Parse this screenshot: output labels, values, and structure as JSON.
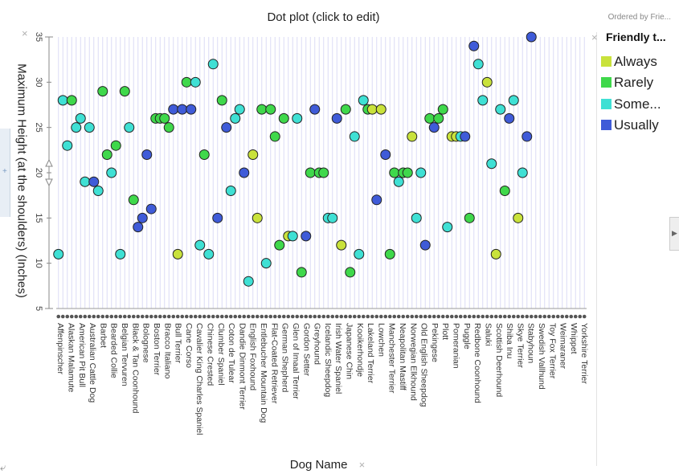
{
  "title": "Dot plot (click to edit)",
  "ordered_by": "Ordered by Frie...",
  "close_glyph": "×",
  "corner_icon": "⤶",
  "chart_data": {
    "type": "scatter",
    "title": "Dot plot (click to edit)",
    "xlabel": "Dog Name",
    "ylabel": "Maximum Height (at the shoulders) (Inches)",
    "ylim": [
      5,
      35
    ],
    "yticks": [
      5,
      10,
      15,
      20,
      25,
      30,
      35
    ],
    "grid": true,
    "legend_position": "right",
    "legend_title": "Friendly t...",
    "legend": [
      {
        "key": "Always",
        "label": "Always",
        "color": "#c9e23b"
      },
      {
        "key": "Rarely",
        "label": "Rarely",
        "color": "#3fd84b"
      },
      {
        "key": "Sometimes",
        "label": "Some...",
        "color": "#3fe0d4"
      },
      {
        "key": "Usually",
        "label": "Usually",
        "color": "#3f5bd8"
      }
    ],
    "categories": [
      "Affenpinscher",
      "Alaskan Malamute",
      "American Pit Bull",
      "Australian Cattle Dog",
      "Barbet",
      "Bearded Collie",
      "Belgian Tervuren",
      "Black & Tan Coonhound",
      "Bolognese",
      "Boston Terrier",
      "Bracco Italiano",
      "Bull Terrier",
      "Cane Corso",
      "Cavalier King Charles Spaniel",
      "Chinese Crested",
      "Clumber Spaniel",
      "Coton de Tulear",
      "Dandie Dinmont Terrier",
      "English Foxhound",
      "Entlebucher Mountain Dog",
      "Flat-Coated Retriever",
      "German Shepherd",
      "Glen of Imaal Terrier",
      "Gordon Setter",
      "Greyhound",
      "Icelandic Sheepdog",
      "Irish Water Spaniel",
      "Japanese Chin",
      "Kooikerhondje",
      "Lakeland Terrier",
      "Lowchen",
      "Manchester Terrier",
      "Neapolitan Mastiff",
      "Norwegian Elkhound",
      "Old English Sheepdog",
      "Pekingese",
      "Plott",
      "Pomeranian",
      "Puggle",
      "Redbone Coonhound",
      "Saluki",
      "Scottish Deerhound",
      "Shiba Inu",
      "Skye Terrier",
      "Stabyhoun",
      "Swedish Vallhund",
      "Toy Fox Terrier",
      "Weimaraner",
      "Whippet",
      "Yorkshire Terrier"
    ],
    "n_slots": 120,
    "points": [
      {
        "x": 1,
        "y": 11,
        "s": "Sometimes"
      },
      {
        "x": 2,
        "y": 28,
        "s": "Sometimes"
      },
      {
        "x": 3,
        "y": 23,
        "s": "Sometimes"
      },
      {
        "x": 4,
        "y": 28,
        "s": "Rarely"
      },
      {
        "x": 5,
        "y": 25,
        "s": "Sometimes"
      },
      {
        "x": 6,
        "y": 26,
        "s": "Sometimes"
      },
      {
        "x": 7,
        "y": 19,
        "s": "Sometimes"
      },
      {
        "x": 8,
        "y": 25,
        "s": "Sometimes"
      },
      {
        "x": 9,
        "y": 19,
        "s": "Usually"
      },
      {
        "x": 10,
        "y": 18,
        "s": "Sometimes"
      },
      {
        "x": 11,
        "y": 29,
        "s": "Rarely"
      },
      {
        "x": 12,
        "y": 22,
        "s": "Rarely"
      },
      {
        "x": 13,
        "y": 20,
        "s": "Sometimes"
      },
      {
        "x": 14,
        "y": 23,
        "s": "Rarely"
      },
      {
        "x": 15,
        "y": 11,
        "s": "Sometimes"
      },
      {
        "x": 16,
        "y": 29,
        "s": "Rarely"
      },
      {
        "x": 17,
        "y": 25,
        "s": "Sometimes"
      },
      {
        "x": 18,
        "y": 17,
        "s": "Rarely"
      },
      {
        "x": 19,
        "y": 14,
        "s": "Usually"
      },
      {
        "x": 20,
        "y": 15,
        "s": "Usually"
      },
      {
        "x": 21,
        "y": 22,
        "s": "Usually"
      },
      {
        "x": 22,
        "y": 16,
        "s": "Usually"
      },
      {
        "x": 23,
        "y": 26,
        "s": "Rarely"
      },
      {
        "x": 24,
        "y": 26,
        "s": "Rarely"
      },
      {
        "x": 25,
        "y": 26,
        "s": "Rarely"
      },
      {
        "x": 26,
        "y": 25,
        "s": "Rarely"
      },
      {
        "x": 27,
        "y": 27,
        "s": "Usually"
      },
      {
        "x": 28,
        "y": 11,
        "s": "Always"
      },
      {
        "x": 29,
        "y": 27,
        "s": "Usually"
      },
      {
        "x": 30,
        "y": 30,
        "s": "Rarely"
      },
      {
        "x": 31,
        "y": 27,
        "s": "Usually"
      },
      {
        "x": 32,
        "y": 30,
        "s": "Sometimes"
      },
      {
        "x": 33,
        "y": 12,
        "s": "Sometimes"
      },
      {
        "x": 34,
        "y": 22,
        "s": "Rarely"
      },
      {
        "x": 35,
        "y": 11,
        "s": "Sometimes"
      },
      {
        "x": 36,
        "y": 32,
        "s": "Sometimes"
      },
      {
        "x": 37,
        "y": 15,
        "s": "Usually"
      },
      {
        "x": 38,
        "y": 28,
        "s": "Rarely"
      },
      {
        "x": 39,
        "y": 25,
        "s": "Usually"
      },
      {
        "x": 40,
        "y": 18,
        "s": "Sometimes"
      },
      {
        "x": 41,
        "y": 26,
        "s": "Sometimes"
      },
      {
        "x": 42,
        "y": 27,
        "s": "Sometimes"
      },
      {
        "x": 43,
        "y": 20,
        "s": "Usually"
      },
      {
        "x": 44,
        "y": 8,
        "s": "Sometimes"
      },
      {
        "x": 45,
        "y": 22,
        "s": "Always"
      },
      {
        "x": 46,
        "y": 15,
        "s": "Always"
      },
      {
        "x": 47,
        "y": 27,
        "s": "Rarely"
      },
      {
        "x": 48,
        "y": 10,
        "s": "Sometimes"
      },
      {
        "x": 49,
        "y": 27,
        "s": "Rarely"
      },
      {
        "x": 50,
        "y": 24,
        "s": "Rarely"
      },
      {
        "x": 51,
        "y": 12,
        "s": "Rarely"
      },
      {
        "x": 52,
        "y": 26,
        "s": "Rarely"
      },
      {
        "x": 53,
        "y": 13,
        "s": "Always"
      },
      {
        "x": 54,
        "y": 13,
        "s": "Sometimes"
      },
      {
        "x": 55,
        "y": 26,
        "s": "Sometimes"
      },
      {
        "x": 56,
        "y": 9,
        "s": "Rarely"
      },
      {
        "x": 57,
        "y": 13,
        "s": "Usually"
      },
      {
        "x": 58,
        "y": 20,
        "s": "Rarely"
      },
      {
        "x": 59,
        "y": 27,
        "s": "Usually"
      },
      {
        "x": 60,
        "y": 20,
        "s": "Rarely"
      },
      {
        "x": 61,
        "y": 20,
        "s": "Rarely"
      },
      {
        "x": 62,
        "y": 15,
        "s": "Sometimes"
      },
      {
        "x": 63,
        "y": 15,
        "s": "Sometimes"
      },
      {
        "x": 64,
        "y": 26,
        "s": "Usually"
      },
      {
        "x": 65,
        "y": 12,
        "s": "Always"
      },
      {
        "x": 66,
        "y": 27,
        "s": "Rarely"
      },
      {
        "x": 67,
        "y": 9,
        "s": "Rarely"
      },
      {
        "x": 68,
        "y": 24,
        "s": "Sometimes"
      },
      {
        "x": 69,
        "y": 11,
        "s": "Sometimes"
      },
      {
        "x": 70,
        "y": 28,
        "s": "Sometimes"
      },
      {
        "x": 71,
        "y": 27,
        "s": "Rarely"
      },
      {
        "x": 72,
        "y": 27,
        "s": "Always"
      },
      {
        "x": 73,
        "y": 17,
        "s": "Usually"
      },
      {
        "x": 74,
        "y": 27,
        "s": "Always"
      },
      {
        "x": 75,
        "y": 22,
        "s": "Usually"
      },
      {
        "x": 76,
        "y": 11,
        "s": "Rarely"
      },
      {
        "x": 77,
        "y": 20,
        "s": "Rarely"
      },
      {
        "x": 78,
        "y": 19,
        "s": "Sometimes"
      },
      {
        "x": 79,
        "y": 20,
        "s": "Rarely"
      },
      {
        "x": 80,
        "y": 20,
        "s": "Rarely"
      },
      {
        "x": 81,
        "y": 24,
        "s": "Always"
      },
      {
        "x": 82,
        "y": 15,
        "s": "Sometimes"
      },
      {
        "x": 83,
        "y": 20,
        "s": "Sometimes"
      },
      {
        "x": 84,
        "y": 12,
        "s": "Usually"
      },
      {
        "x": 85,
        "y": 26,
        "s": "Rarely"
      },
      {
        "x": 86,
        "y": 25,
        "s": "Usually"
      },
      {
        "x": 87,
        "y": 26,
        "s": "Rarely"
      },
      {
        "x": 88,
        "y": 27,
        "s": "Rarely"
      },
      {
        "x": 89,
        "y": 14,
        "s": "Sometimes"
      },
      {
        "x": 90,
        "y": 24,
        "s": "Always"
      },
      {
        "x": 91,
        "y": 24,
        "s": "Always"
      },
      {
        "x": 92,
        "y": 24,
        "s": "Sometimes"
      },
      {
        "x": 93,
        "y": 24,
        "s": "Usually"
      },
      {
        "x": 94,
        "y": 15,
        "s": "Rarely"
      },
      {
        "x": 95,
        "y": 34,
        "s": "Usually"
      },
      {
        "x": 96,
        "y": 32,
        "s": "Sometimes"
      },
      {
        "x": 97,
        "y": 28,
        "s": "Sometimes"
      },
      {
        "x": 98,
        "y": 30,
        "s": "Always"
      },
      {
        "x": 99,
        "y": 21,
        "s": "Sometimes"
      },
      {
        "x": 100,
        "y": 11,
        "s": "Always"
      },
      {
        "x": 101,
        "y": 27,
        "s": "Sometimes"
      },
      {
        "x": 102,
        "y": 18,
        "s": "Rarely"
      },
      {
        "x": 103,
        "y": 26,
        "s": "Usually"
      },
      {
        "x": 104,
        "y": 28,
        "s": "Sometimes"
      },
      {
        "x": 105,
        "y": 15,
        "s": "Always"
      },
      {
        "x": 106,
        "y": 20,
        "s": "Sometimes"
      },
      {
        "x": 107,
        "y": 24,
        "s": "Usually"
      },
      {
        "x": 108,
        "y": 35,
        "s": "Usually"
      }
    ]
  }
}
